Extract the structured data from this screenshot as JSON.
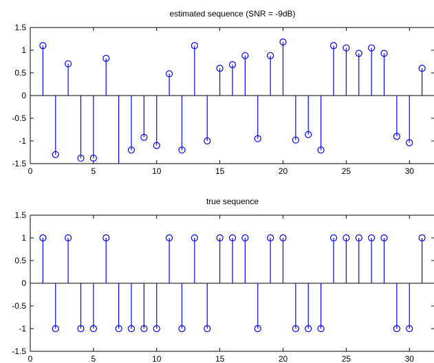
{
  "chart_data": [
    {
      "type": "stem",
      "title": "estimated sequence (SNR = -9dB)",
      "xlabel": "",
      "ylabel": "",
      "xlim": [
        0,
        32
      ],
      "ylim": [
        -1.5,
        1.5
      ],
      "xticks": [
        0,
        5,
        10,
        15,
        20,
        25,
        30
      ],
      "yticks": [
        1.5,
        1,
        0.5,
        0,
        -0.5,
        -1,
        -1.5
      ],
      "color": "#0000ff",
      "grid": false,
      "x": [
        1,
        2,
        3,
        4,
        5,
        6,
        7,
        8,
        9,
        10,
        11,
        12,
        13,
        14,
        15,
        16,
        17,
        18,
        19,
        20,
        21,
        22,
        23,
        24,
        25,
        26,
        27,
        28,
        29,
        30,
        31
      ],
      "y": [
        1.1,
        -1.3,
        0.7,
        -1.38,
        -1.38,
        0.82,
        -1.6,
        -1.2,
        -0.92,
        -1.1,
        0.48,
        -1.2,
        1.1,
        -1.0,
        0.6,
        0.68,
        0.88,
        -0.95,
        0.88,
        1.18,
        -0.98,
        -0.86,
        -1.2,
        1.1,
        1.05,
        0.93,
        1.05,
        0.93,
        -0.9,
        -1.04,
        0.6
      ]
    },
    {
      "type": "stem",
      "title": "true sequence",
      "xlabel": "",
      "ylabel": "",
      "xlim": [
        0,
        32
      ],
      "ylim": [
        -1.5,
        1.5
      ],
      "xticks": [
        0,
        5,
        10,
        15,
        20,
        25,
        30
      ],
      "yticks": [
        1.5,
        1,
        0.5,
        0,
        -0.5,
        -1,
        -1.5
      ],
      "color": "#0000ff",
      "grid": false,
      "x": [
        1,
        2,
        3,
        4,
        5,
        6,
        7,
        8,
        9,
        10,
        11,
        12,
        13,
        14,
        15,
        16,
        17,
        18,
        19,
        20,
        21,
        22,
        23,
        24,
        25,
        26,
        27,
        28,
        29,
        30,
        31
      ],
      "y": [
        1,
        -1,
        1,
        -1,
        -1,
        1,
        -1,
        -1,
        -1,
        -1,
        1,
        -1,
        1,
        -1,
        1,
        1,
        1,
        -1,
        1,
        1,
        -1,
        -1,
        -1,
        1,
        1,
        1,
        1,
        1,
        -1,
        -1,
        1
      ]
    }
  ]
}
